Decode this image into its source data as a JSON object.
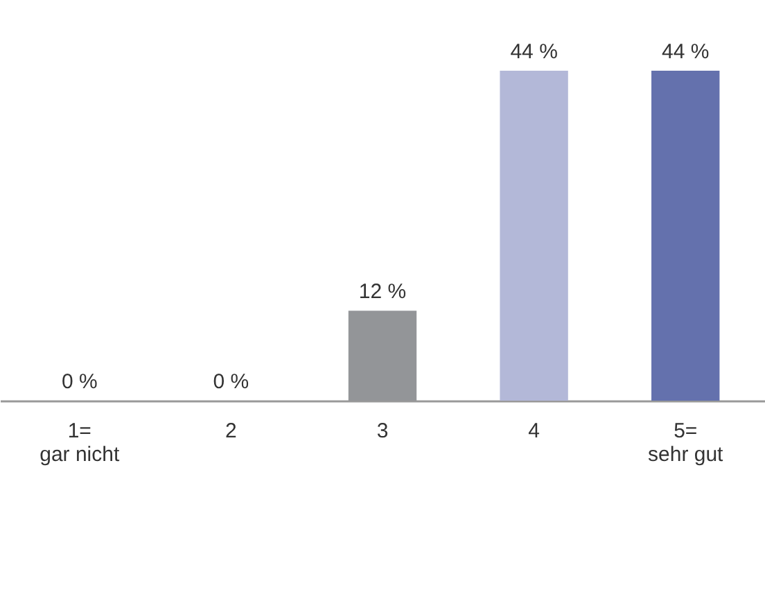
{
  "chart_data": {
    "type": "bar",
    "categories": [
      "1=\ngar nicht",
      "2",
      "3",
      "4",
      "5=\nsehr gut"
    ],
    "values": [
      0,
      0,
      12,
      44,
      44
    ],
    "colors": [
      "#939598",
      "#939598",
      "#939598",
      "#b3b8d8",
      "#6471ad"
    ],
    "value_labels": [
      "0 %",
      "0 %",
      "12 %",
      "44 %",
      "44 %"
    ],
    "grid": false
  }
}
